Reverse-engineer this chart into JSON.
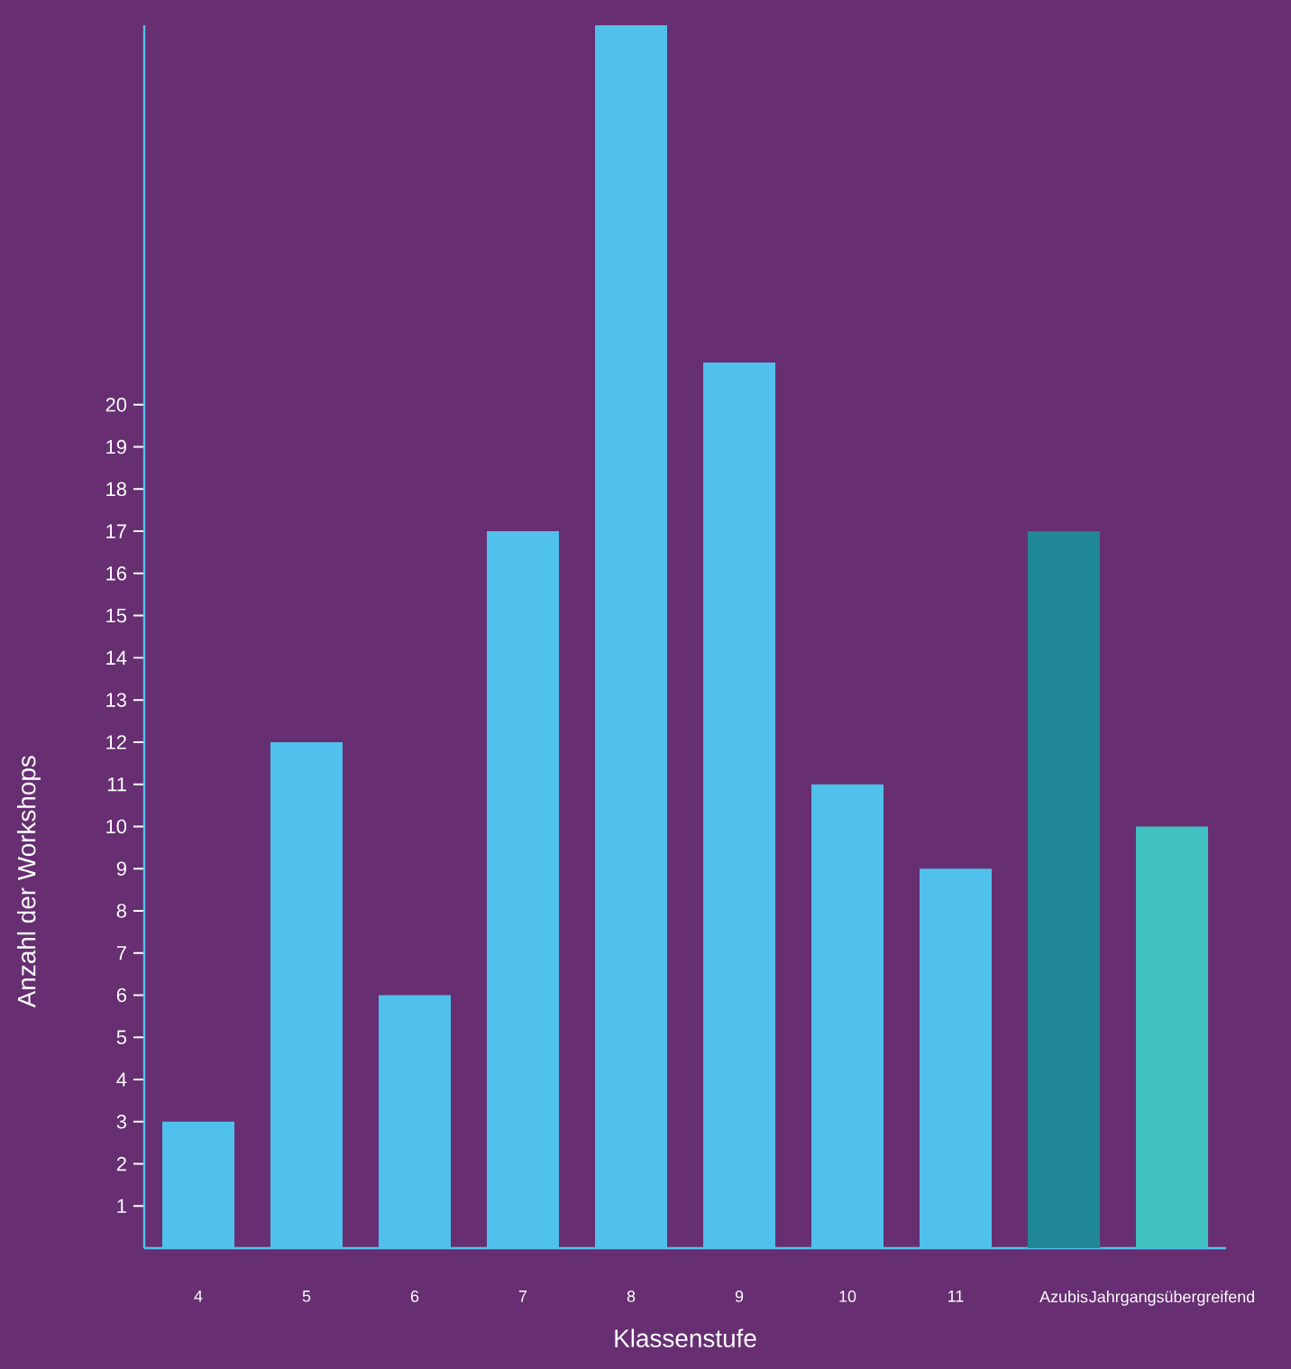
{
  "chart_data": {
    "type": "bar",
    "xlabel": "Klassenstufe",
    "ylabel": "Anzahl der Workshops",
    "categories": [
      "4",
      "5",
      "6",
      "7",
      "8",
      "9",
      "10",
      "11",
      "Azubis",
      "Jahrgangsübergreifend"
    ],
    "values": [
      3,
      12,
      6,
      17,
      29,
      21,
      11,
      9,
      17,
      10
    ],
    "colors": [
      "#4fc1ec",
      "#4fc1ec",
      "#4fc1ec",
      "#4fc1ec",
      "#4fc1ec",
      "#4fc1ec",
      "#4fc1ec",
      "#4fc1ec",
      "#1f8797",
      "#3fc1c1"
    ],
    "ylim": [
      0,
      29
    ],
    "yticks": [
      1,
      2,
      3,
      4,
      5,
      6,
      7,
      8,
      9,
      10,
      11,
      12,
      13,
      14,
      15,
      16,
      17,
      18,
      19,
      20
    ]
  }
}
